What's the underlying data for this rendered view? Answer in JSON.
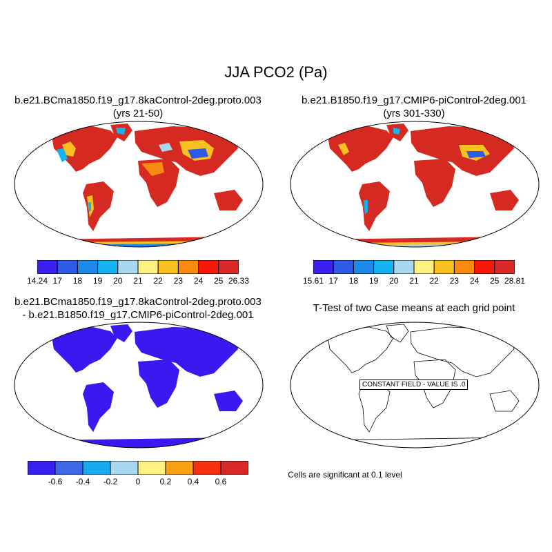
{
  "figure": {
    "title": "JJA PCO2 (Pa)"
  },
  "panels": [
    {
      "id": "case1",
      "title_line1": "b.e21.BCma1850.f19_g17.8kaControl-2deg.proto.003",
      "title_line2": "(yrs 21-50)",
      "colorbar_labels": [
        "14.24",
        "17",
        "18",
        "19",
        "20",
        "21",
        "22",
        "23",
        "24",
        "25",
        "26.33"
      ]
    },
    {
      "id": "case2",
      "title_line1": "b.e21.B1850.f19_g17.CMIP6-piControl-2deg.001",
      "title_line2": "(yrs 301-330)",
      "colorbar_labels": [
        "15.61",
        "17",
        "18",
        "19",
        "20",
        "21",
        "22",
        "23",
        "24",
        "25",
        "28.81"
      ]
    },
    {
      "id": "diff",
      "title_line1": "b.e21.BCma1850.f19_g17.8kaControl-2deg.proto.003",
      "title_line2": "- b.e21.B1850.f19_g17.CMIP6-piControl-2deg.001",
      "colorbar_labels": [
        "-0.6",
        "-0.4",
        "-0.2",
        "0",
        "0.2",
        "0.4",
        "0.6"
      ]
    },
    {
      "id": "ttest",
      "title_line1": "T-Test of two Case means at each grid point",
      "constant_label": "CONSTANT FIELD - VALUE IS .0",
      "footer": "Cells are significant at 0.1 level"
    }
  ],
  "colors": {
    "case_palette": [
      "#3a20f0",
      "#2f5ae6",
      "#1e88e8",
      "#14b4f0",
      "#a8d8f0",
      "#fff080",
      "#f8c020",
      "#f88a10",
      "#f81808",
      "#d82828"
    ],
    "diff_palette": [
      "#3a20f0",
      "#3f68e8",
      "#18a8f0",
      "#a8d8f0",
      "#fff080",
      "#f8a010",
      "#f83010",
      "#d82828"
    ],
    "land_case": "#d42a22",
    "land_diff": "#3a18f0"
  }
}
